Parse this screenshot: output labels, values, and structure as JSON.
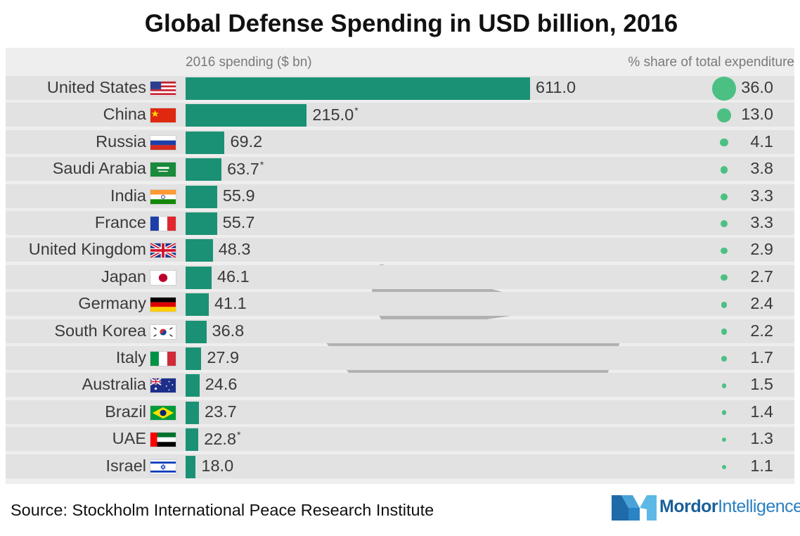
{
  "title": "Global Defense Spending in USD billion, 2016",
  "source": "Source: Stockholm International Peace Research Institute",
  "logo": {
    "word1": "Mordor",
    "word2": "Intelligence"
  },
  "colors": {
    "bar": "#1a9174",
    "dot": "#4cc083",
    "row_bg": "#e2e2e2",
    "panel_bg": "#eeeeee",
    "logo_blue": "#2a7fc0"
  },
  "chart_data": {
    "type": "bar",
    "title": "Global Defense Spending in USD billion, 2016",
    "orientation": "horizontal",
    "bar_column_label": "2016 spending ($ bn)",
    "share_column_label": "% share of total expenditure",
    "categories": [
      "United States",
      "China",
      "Russia",
      "Saudi Arabia",
      "India",
      "France",
      "United Kingdom",
      "Japan",
      "Germany",
      "South Korea",
      "Italy",
      "Australia",
      "Brazil",
      "UAE",
      "Israel"
    ],
    "flags": [
      "us-flag-icon",
      "cn-flag-icon",
      "ru-flag-icon",
      "sa-flag-icon",
      "in-flag-icon",
      "fr-flag-icon",
      "uk-flag-icon",
      "jp-flag-icon",
      "de-flag-icon",
      "kr-flag-icon",
      "it-flag-icon",
      "au-flag-icon",
      "br-flag-icon",
      "ae-flag-icon",
      "il-flag-icon"
    ],
    "series": [
      {
        "name": "2016 spending ($ bn)",
        "values": [
          611.0,
          215.0,
          69.2,
          63.7,
          55.9,
          55.7,
          48.3,
          46.1,
          41.1,
          36.8,
          27.9,
          24.6,
          23.7,
          22.8,
          18.0
        ]
      },
      {
        "name": "% share of total expenditure",
        "values": [
          36.0,
          13.0,
          4.1,
          3.8,
          3.3,
          3.3,
          2.9,
          2.7,
          2.4,
          2.2,
          1.7,
          1.5,
          1.4,
          1.3,
          1.1
        ]
      }
    ],
    "value_labels": [
      "611.0",
      "215.0",
      "69.2",
      "63.7",
      "55.9",
      "55.7",
      "48.3",
      "46.1",
      "41.1",
      "36.8",
      "27.9",
      "24.6",
      "23.7",
      "22.8",
      "18.0"
    ],
    "share_labels": [
      "36.0",
      "13.0",
      "4.1",
      "3.8",
      "3.3",
      "3.3",
      "2.9",
      "2.7",
      "2.4",
      "2.2",
      "1.7",
      "1.5",
      "1.4",
      "1.3",
      "1.1"
    ],
    "asterisk": [
      false,
      true,
      false,
      true,
      false,
      false,
      false,
      false,
      false,
      false,
      false,
      false,
      false,
      true,
      false
    ],
    "grid": false,
    "legend": "none"
  }
}
